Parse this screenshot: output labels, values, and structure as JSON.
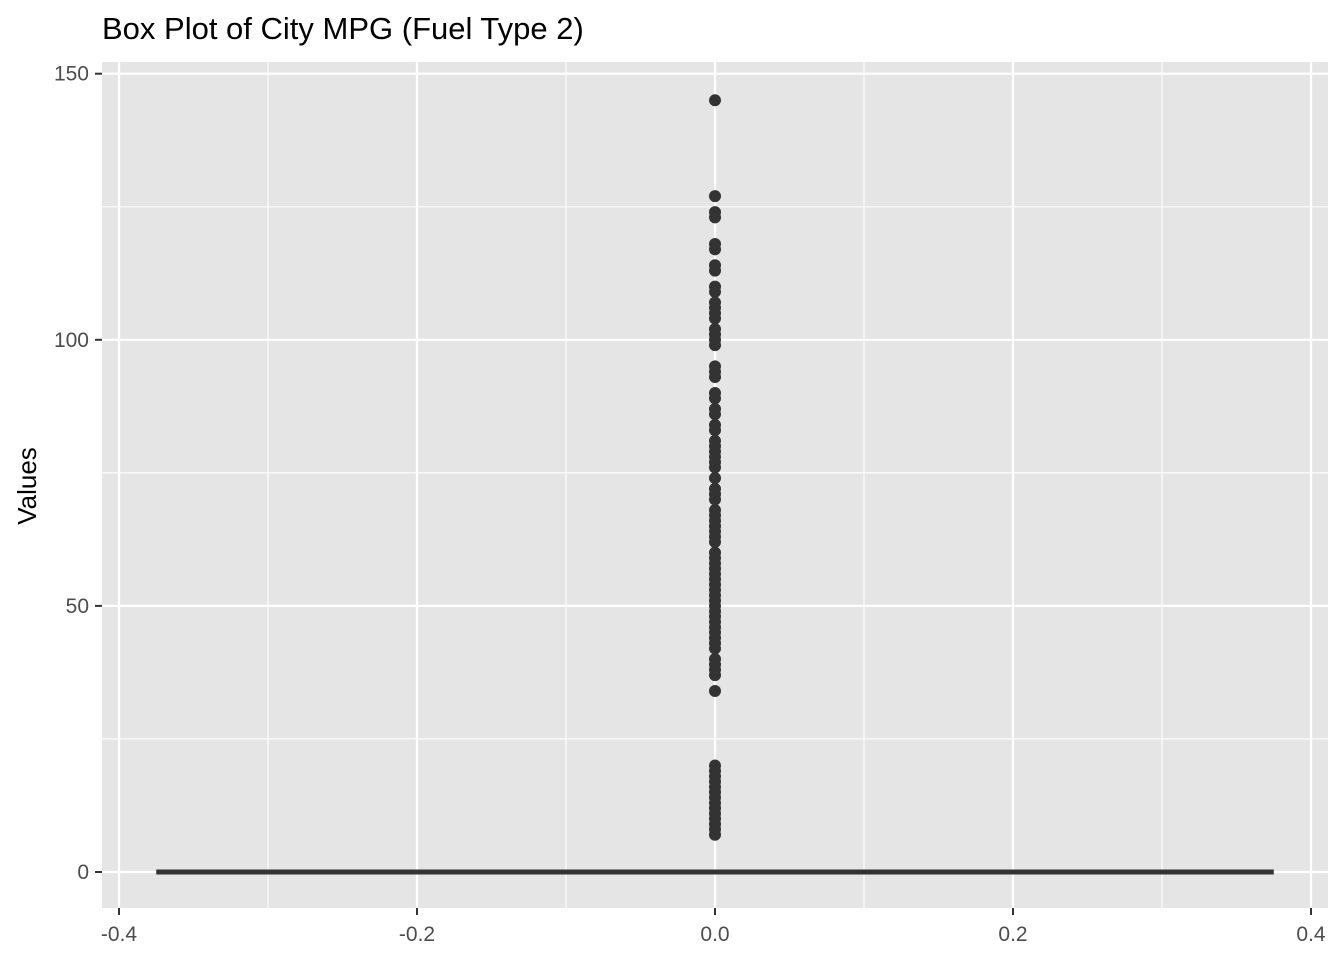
{
  "chart_data": {
    "type": "box",
    "title": "Box Plot of City MPG (Fuel Type 2)",
    "xlabel": "",
    "ylabel": "Values",
    "xlim": [
      -0.4,
      0.4
    ],
    "ylim": [
      0,
      150
    ],
    "x_ticks": [
      -0.4,
      -0.2,
      0.0,
      0.2,
      0.4
    ],
    "x_tick_labels": [
      "-0.4",
      "-0.2",
      "0.0",
      "0.2",
      "0.4"
    ],
    "y_ticks": [
      0,
      50,
      100,
      150
    ],
    "y_tick_labels": [
      "0",
      "50",
      "100",
      "150"
    ],
    "grid": true,
    "box": {
      "x": 0.0,
      "xmin": -0.375,
      "xmax": 0.375,
      "q1": 0,
      "median": 0,
      "q3": 0,
      "whisker_low": 0,
      "whisker_high": 0
    },
    "outliers": {
      "x": 0.0,
      "values": [
        145,
        127,
        124,
        123,
        118,
        117,
        114,
        113,
        110,
        109,
        107,
        106,
        105,
        104,
        102,
        101,
        100,
        99,
        95,
        94,
        93,
        90,
        89,
        87,
        86,
        84,
        83,
        81,
        80,
        79,
        78,
        77,
        76,
        74,
        72,
        71,
        70,
        68,
        67,
        66,
        65,
        64,
        63,
        62,
        60,
        59,
        58,
        57,
        56,
        55,
        54,
        53,
        52,
        51,
        50,
        49,
        48,
        47,
        46,
        45,
        44,
        43,
        42,
        40,
        39,
        38,
        37,
        34,
        20,
        19,
        18,
        17,
        16,
        15,
        14,
        13,
        12,
        11,
        10,
        9,
        8,
        7
      ]
    },
    "colors": {
      "panel": "#e5e5e5",
      "grid": "#ffffff",
      "points": "#333333",
      "box": "#333333"
    }
  }
}
